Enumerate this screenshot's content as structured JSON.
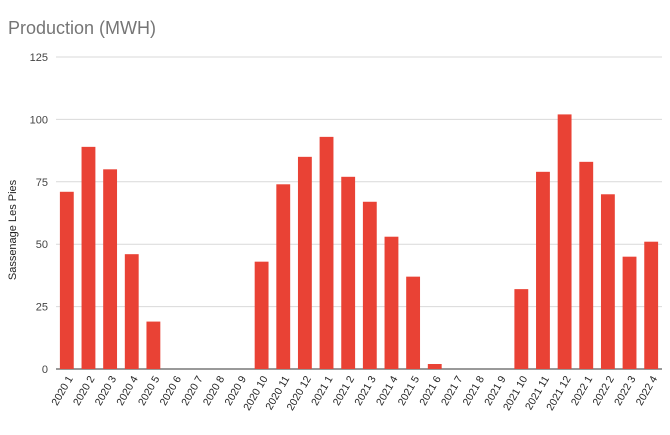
{
  "chart_data": {
    "type": "bar",
    "title": "Production (MWH)",
    "xlabel": "",
    "ylabel": "Sassenage Les Pies",
    "ylim": [
      0,
      125
    ],
    "yticks": [
      0,
      25,
      50,
      75,
      100,
      125
    ],
    "grid": true,
    "bar_color": "#e94235",
    "categories": [
      "2020 1",
      "2020 2",
      "2020 3",
      "2020 4",
      "2020 5",
      "2020 6",
      "2020 7",
      "2020 8",
      "2020 9",
      "2020 10",
      "2020 11",
      "2020 12",
      "2021 1",
      "2021 2",
      "2021 3",
      "2021 4",
      "2021 5",
      "2021 6",
      "2021 7",
      "2021 8",
      "2021 9",
      "2021 10",
      "2021 11",
      "2021 12",
      "2022 1",
      "2022 2",
      "2022 3",
      "2022 4"
    ],
    "values": [
      71,
      89,
      80,
      46,
      19,
      0,
      0,
      0,
      0,
      43,
      74,
      85,
      93,
      77,
      67,
      53,
      37,
      2,
      0,
      0,
      0,
      32,
      79,
      102,
      83,
      70,
      45,
      51
    ]
  }
}
